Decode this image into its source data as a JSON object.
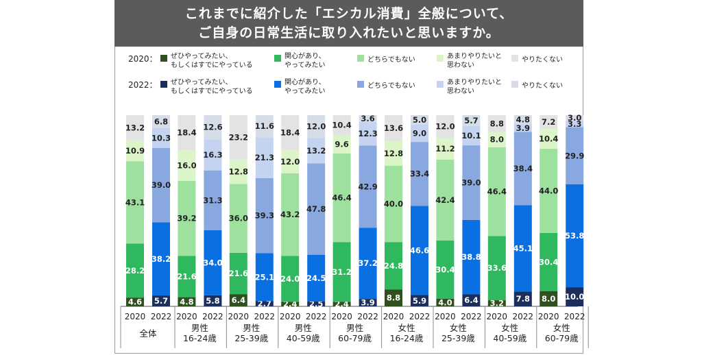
{
  "title_lines": [
    "これまでに紹介した「エシカル消費」全般について、",
    "ご自身の日常生活に取り入れたいと思いますか。"
  ],
  "legend": [
    {
      "year": "2020：",
      "items": [
        {
          "label": [
            "ぜひやってみたい、",
            "もしくはすでにやっている"
          ],
          "color": "#2f4f1f"
        },
        {
          "label": [
            "関心があり、",
            "やってみたい"
          ],
          "color": "#2fb85e"
        },
        {
          "label": [
            "どちらでもない"
          ],
          "color": "#9ee09e"
        },
        {
          "label": [
            "あまりやりたいと",
            "思わない"
          ],
          "color": "#dcf5c8"
        },
        {
          "label": [
            "やりたくない"
          ],
          "color": "#e3e3e3"
        }
      ]
    },
    {
      "year": "2022：",
      "items": [
        {
          "label": [
            "ぜひやってみたい、",
            "もしくはすでにやっている"
          ],
          "color": "#1b2e5c"
        },
        {
          "label": [
            "関心があり、",
            "やってみたい"
          ],
          "color": "#0a6fe0"
        },
        {
          "label": [
            "どちらでもない"
          ],
          "color": "#8aa8e0"
        },
        {
          "label": [
            "あまりやりたいと",
            "思わない"
          ],
          "color": "#c3d3f0"
        },
        {
          "label": [
            "やりたくない"
          ],
          "color": "#d6dde8"
        }
      ]
    }
  ],
  "chart_data": {
    "type": "bar",
    "stacked": true,
    "percent_stacked": true,
    "segment_order": [
      "ぜひやってみたい、もしくはすでにやっている",
      "関心があり、やってみたい",
      "どちらでもない",
      "あまりやりたいと思わない",
      "やりたくない"
    ],
    "groups": [
      {
        "label": [
          "全体"
        ],
        "bars": [
          {
            "year": "2020",
            "values": [
              4.6,
              28.2,
              43.1,
              10.9,
              13.2
            ]
          },
          {
            "year": "2022",
            "values": [
              5.7,
              38.2,
              39.0,
              10.3,
              6.8
            ]
          }
        ]
      },
      {
        "label": [
          "男性",
          "16-24歳"
        ],
        "bars": [
          {
            "year": "2020",
            "values": [
              4.8,
              21.6,
              39.2,
              16.0,
              18.4
            ]
          },
          {
            "year": "2022",
            "values": [
              5.8,
              34.0,
              31.3,
              16.3,
              12.6
            ]
          }
        ]
      },
      {
        "label": [
          "男性",
          "25-39歳"
        ],
        "bars": [
          {
            "year": "2020",
            "values": [
              6.4,
              21.6,
              36.0,
              12.8,
              23.2
            ]
          },
          {
            "year": "2022",
            "values": [
              2.7,
              25.1,
              39.3,
              21.3,
              11.6
            ]
          }
        ]
      },
      {
        "label": [
          "男性",
          "40-59歳"
        ],
        "bars": [
          {
            "year": "2020",
            "values": [
              2.4,
              24.0,
              43.2,
              12.0,
              18.4
            ]
          },
          {
            "year": "2022",
            "values": [
              2.5,
              24.5,
              47.8,
              13.2,
              12.0
            ]
          }
        ]
      },
      {
        "label": [
          "男性",
          "60-79歳"
        ],
        "bars": [
          {
            "year": "2020",
            "values": [
              2.4,
              31.2,
              46.4,
              9.6,
              10.4
            ]
          },
          {
            "year": "2022",
            "values": [
              3.9,
              37.2,
              42.9,
              12.3,
              3.6
            ]
          }
        ]
      },
      {
        "label": [
          "女性",
          "16-24歳"
        ],
        "bars": [
          {
            "year": "2020",
            "values": [
              8.8,
              24.8,
              40.0,
              12.8,
              13.6
            ]
          },
          {
            "year": "2022",
            "values": [
              5.9,
              46.6,
              33.4,
              9.0,
              5.0
            ]
          }
        ]
      },
      {
        "label": [
          "女性",
          "25-39歳"
        ],
        "bars": [
          {
            "year": "2020",
            "values": [
              4.0,
              30.4,
              42.4,
              11.2,
              12.0
            ]
          },
          {
            "year": "2022",
            "values": [
              6.4,
              38.8,
              39.0,
              10.1,
              5.7
            ]
          }
        ]
      },
      {
        "label": [
          "女性",
          "40-59歳"
        ],
        "bars": [
          {
            "year": "2020",
            "values": [
              3.2,
              33.6,
              46.4,
              8.0,
              8.8
            ]
          },
          {
            "year": "2022",
            "values": [
              7.8,
              45.1,
              38.4,
              3.9,
              4.8
            ]
          }
        ]
      },
      {
        "label": [
          "女性",
          "60-79歳"
        ],
        "bars": [
          {
            "year": "2020",
            "values": [
              8.0,
              30.4,
              44.0,
              10.4,
              7.2
            ]
          },
          {
            "year": "2022",
            "values": [
              10.0,
              53.8,
              29.9,
              3.3,
              3.0
            ]
          }
        ]
      }
    ],
    "colors": {
      "2020": [
        "#2f4f1f",
        "#2fb85e",
        "#9ee09e",
        "#dcf5c8",
        "#e3e3e3"
      ],
      "2022": [
        "#1b2e5c",
        "#0a6fe0",
        "#8aa8e0",
        "#c3d3f0",
        "#d6dde8"
      ]
    },
    "label_colors": {
      "2020": [
        "#ffffff",
        "#ffffff",
        "#222222",
        "#222222",
        "#222222"
      ],
      "2022": [
        "#ffffff",
        "#ffffff",
        "#222222",
        "#222222",
        "#222222"
      ]
    }
  }
}
